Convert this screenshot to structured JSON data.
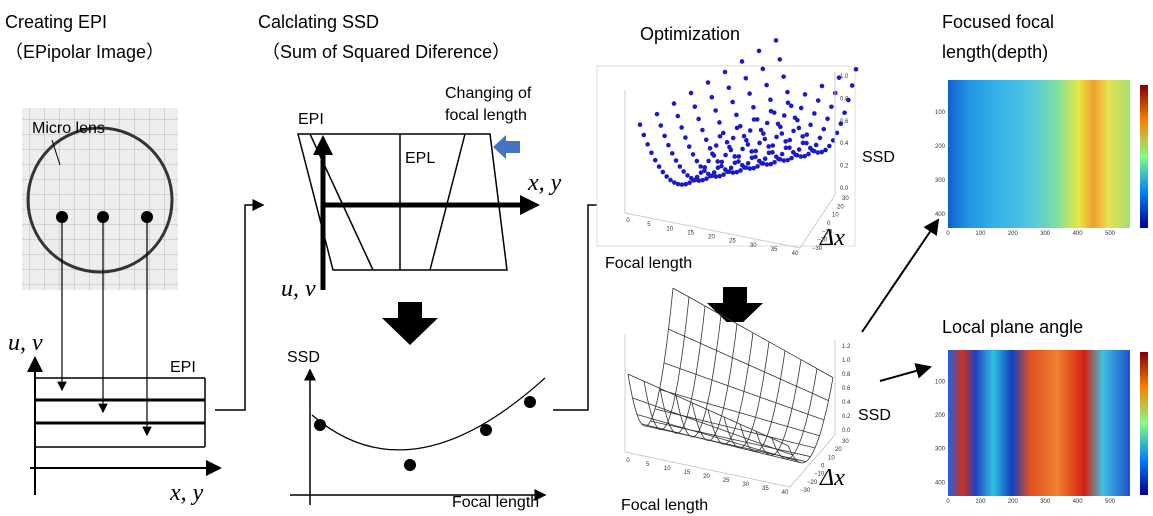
{
  "sections": [
    {
      "title": "Creating EPI",
      "subtitle": "（EPipolar Image）"
    },
    {
      "title": "Calclating SSD",
      "subtitle": "（Sum of Squared Diference）"
    },
    {
      "title": "Optimization"
    },
    {
      "title": "Focused focal",
      "subtitle": "length(depth)"
    },
    {
      "title": "Local plane angle"
    }
  ],
  "epi_creation": {
    "micro_lens": "Micro lens",
    "epi": "EPI",
    "vertical_axis": "u, v",
    "horizontal_axis": "x, y"
  },
  "ssd": {
    "change_note": [
      "Changing of",
      "focal length"
    ],
    "epi": "EPI",
    "epl": "EPL",
    "horizontal_axis": "x, y",
    "vertical_axis": "u, v",
    "plot_y": "SSD",
    "plot_x": "Focal length"
  },
  "plots": [
    {
      "z_label": "SSD",
      "y_label": "Δx",
      "x_label": "Focal length",
      "x_ticks": [
        "0",
        "5",
        "10",
        "15",
        "20",
        "25",
        "30",
        "35",
        "40"
      ],
      "y_ticks": [
        "−30",
        "−20",
        "−10",
        "0",
        "10",
        "20",
        "30"
      ],
      "z_ticks": [
        "0.0",
        "0.2",
        "0.4",
        "0.6",
        "0.8",
        "1.0"
      ]
    },
    {
      "z_label": "SSD",
      "y_label": "Δx",
      "x_label": "Focal length",
      "x_ticks": [
        "0",
        "5",
        "10",
        "15",
        "20",
        "25",
        "30",
        "35",
        "40"
      ],
      "y_ticks": [
        "−30",
        "−20",
        "−10",
        "0",
        "10",
        "20",
        "30"
      ],
      "z_ticks": [
        "0.0",
        "0.2",
        "0.4",
        "0.6",
        "0.8",
        "1.0",
        "1.2"
      ]
    }
  ],
  "heatmaps": [
    {
      "x_ticks": [
        "0",
        "100",
        "200",
        "300",
        "400",
        "500"
      ],
      "y_ticks": [
        "100",
        "200",
        "300",
        "400"
      ]
    },
    {
      "x_ticks": [
        "0",
        "100",
        "200",
        "300",
        "400",
        "500"
      ],
      "y_ticks": [
        "100",
        "200",
        "300",
        "400"
      ]
    }
  ]
}
